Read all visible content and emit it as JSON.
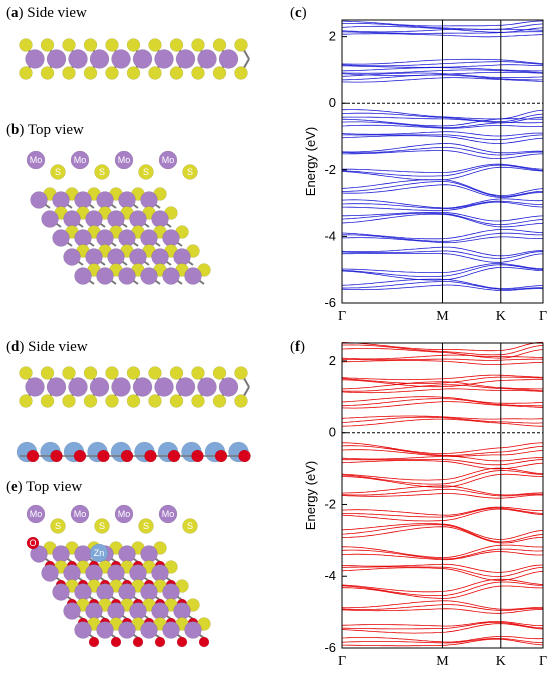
{
  "figure": {
    "panels": {
      "a": {
        "letter": "a",
        "title": "Side view"
      },
      "b": {
        "letter": "b",
        "title": "Top view"
      },
      "c": {
        "letter": "c"
      },
      "d": {
        "letter": "d",
        "title": "Side view"
      },
      "e": {
        "letter": "e",
        "title": "Top view"
      },
      "f": {
        "letter": "f"
      }
    },
    "atom_labels": {
      "mo": "Mo",
      "s": "S",
      "o": "O",
      "zn": "Zn"
    },
    "colors": {
      "mo": "#a67fc4",
      "s": "#d9d630",
      "zn": "#7fa8d8",
      "o": "#d9001b",
      "band_c": "#1f1fd6",
      "band_f": "#e60000"
    }
  },
  "chart_data": [
    {
      "type": "line",
      "panel": "c",
      "ylabel": "Energy (eV)",
      "ylim": [
        -6,
        2.5
      ],
      "yticks": [
        2,
        0,
        -2,
        -4,
        -6
      ],
      "yticklabels": [
        "2",
        "0",
        "-2",
        "-4",
        "-6"
      ],
      "xticklabels": [
        "Γ",
        "M",
        "K",
        "Γ"
      ],
      "x": [
        0,
        0.5,
        0.79,
        1.0
      ],
      "fermi_level": 0,
      "series": [
        {
          "values": [
            2.35,
            2.3,
            2.25,
            2.35
          ]
        },
        {
          "values": [
            2.1,
            2.15,
            2.1,
            2.1
          ]
        },
        {
          "values": [
            1.15,
            1.2,
            1.2,
            1.15
          ]
        },
        {
          "values": [
            0.95,
            0.95,
            0.95,
            0.95
          ]
        },
        {
          "values": [
            0.75,
            0.8,
            0.75,
            0.75
          ]
        },
        {
          "values": [
            -0.3,
            -0.45,
            -0.5,
            -0.3
          ]
        },
        {
          "values": [
            -0.6,
            -0.7,
            -0.55,
            -0.6
          ]
        },
        {
          "values": [
            -1.0,
            -0.9,
            -1.1,
            -1.0
          ]
        },
        {
          "values": [
            -1.5,
            -1.3,
            -1.6,
            -1.5
          ]
        },
        {
          "values": [
            -2.0,
            -2.2,
            -1.9,
            -2.0
          ]
        },
        {
          "values": [
            -2.6,
            -2.4,
            -2.8,
            -2.6
          ]
        },
        {
          "values": [
            -3.0,
            -3.2,
            -2.9,
            -3.0
          ]
        },
        {
          "values": [
            -3.5,
            -3.3,
            -3.6,
            -3.5
          ]
        },
        {
          "values": [
            -4.0,
            -4.1,
            -3.9,
            -4.0
          ]
        },
        {
          "values": [
            -4.5,
            -4.4,
            -4.7,
            -4.5
          ]
        },
        {
          "values": [
            -5.0,
            -5.2,
            -4.9,
            -5.0
          ]
        },
        {
          "values": [
            -5.5,
            -5.4,
            -5.6,
            -5.5
          ]
        }
      ]
    },
    {
      "type": "line",
      "panel": "f",
      "ylabel": "Energy (eV)",
      "ylim": [
        -6,
        2.5
      ],
      "yticks": [
        2,
        0,
        -2,
        -4,
        -6
      ],
      "yticklabels": [
        "2",
        "0",
        "-2",
        "-4",
        "-6"
      ],
      "xticklabels": [
        "Γ",
        "M",
        "K",
        "Γ"
      ],
      "x": [
        0,
        0.5,
        0.79,
        1.0
      ],
      "fermi_level": 0,
      "series": [
        {
          "values": [
            2.4,
            2.3,
            2.2,
            2.4
          ]
        },
        {
          "values": [
            2.0,
            2.1,
            2.0,
            2.0
          ]
        },
        {
          "values": [
            1.5,
            1.4,
            1.5,
            1.5
          ]
        },
        {
          "values": [
            1.2,
            1.3,
            1.2,
            1.2
          ]
        },
        {
          "values": [
            0.8,
            0.9,
            0.8,
            0.8
          ]
        },
        {
          "values": [
            0.3,
            0.4,
            0.35,
            0.3
          ]
        },
        {
          "values": [
            -0.4,
            -0.6,
            -0.5,
            -0.4
          ]
        },
        {
          "values": [
            -0.8,
            -0.7,
            -0.9,
            -0.8
          ]
        },
        {
          "values": [
            -1.2,
            -1.4,
            -1.1,
            -1.2
          ]
        },
        {
          "values": [
            -1.7,
            -1.6,
            -1.8,
            -1.7
          ]
        },
        {
          "values": [
            -2.2,
            -2.4,
            -2.1,
            -2.2
          ]
        },
        {
          "values": [
            -2.8,
            -2.6,
            -3.0,
            -2.8
          ]
        },
        {
          "values": [
            -3.3,
            -3.5,
            -3.2,
            -3.3
          ]
        },
        {
          "values": [
            -3.8,
            -3.7,
            -4.0,
            -3.8
          ]
        },
        {
          "values": [
            -4.3,
            -4.5,
            -4.2,
            -4.3
          ]
        },
        {
          "values": [
            -4.9,
            -4.8,
            -5.0,
            -4.9
          ]
        },
        {
          "values": [
            -5.4,
            -5.5,
            -5.3,
            -5.4
          ]
        },
        {
          "values": [
            -5.8,
            -5.9,
            -5.7,
            -5.8
          ]
        }
      ]
    }
  ]
}
